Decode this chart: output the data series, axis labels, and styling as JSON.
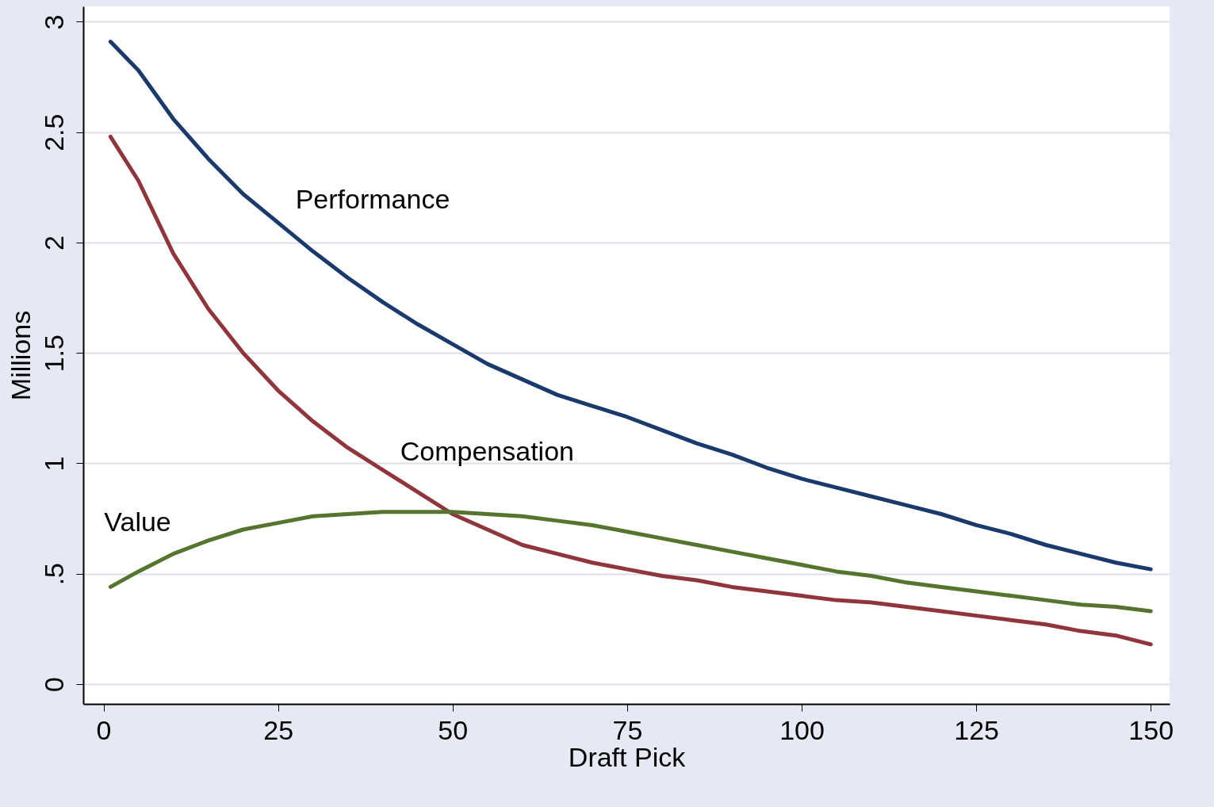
{
  "chart_data": {
    "type": "line",
    "xlabel": "Draft Pick",
    "ylabel": "Millions",
    "xlim": [
      -2.9,
      152.7
    ],
    "ylim": [
      -0.09,
      3.07
    ],
    "xticks": [
      0,
      25,
      50,
      75,
      100,
      125,
      150
    ],
    "yticks": [
      0,
      {
        "value": 0.5,
        "label": ".5"
      },
      1,
      1.5,
      2,
      2.5,
      3
    ],
    "grid": "y",
    "legend": false,
    "marker": "none",
    "line_style": "solid",
    "x": [
      1,
      5,
      10,
      15,
      20,
      25,
      30,
      35,
      40,
      45,
      50,
      55,
      60,
      65,
      70,
      75,
      80,
      85,
      90,
      95,
      100,
      105,
      110,
      115,
      120,
      125,
      130,
      135,
      140,
      145,
      150
    ],
    "series": [
      {
        "name": "Performance",
        "color": "#1a3a6e",
        "values": [
          2.91,
          2.78,
          2.56,
          2.38,
          2.22,
          2.09,
          1.96,
          1.84,
          1.73,
          1.63,
          1.54,
          1.45,
          1.38,
          1.31,
          1.26,
          1.21,
          1.15,
          1.09,
          1.04,
          0.98,
          0.93,
          0.89,
          0.85,
          0.81,
          0.77,
          0.72,
          0.68,
          0.63,
          0.59,
          0.55,
          0.52
        ]
      },
      {
        "name": "Compensation",
        "color": "#90353b",
        "values": [
          2.48,
          2.28,
          1.95,
          1.7,
          1.5,
          1.33,
          1.19,
          1.07,
          0.97,
          0.87,
          0.77,
          0.7,
          0.63,
          0.59,
          0.55,
          0.52,
          0.49,
          0.47,
          0.44,
          0.42,
          0.4,
          0.38,
          0.37,
          0.35,
          0.33,
          0.31,
          0.29,
          0.27,
          0.24,
          0.22,
          0.18
        ]
      },
      {
        "name": "Value",
        "color": "#55752f",
        "values": [
          0.44,
          0.51,
          0.59,
          0.65,
          0.7,
          0.73,
          0.76,
          0.77,
          0.78,
          0.78,
          0.78,
          0.77,
          0.76,
          0.74,
          0.72,
          0.69,
          0.66,
          0.63,
          0.6,
          0.57,
          0.54,
          0.51,
          0.49,
          0.46,
          0.44,
          0.42,
          0.4,
          0.38,
          0.36,
          0.35,
          0.33
        ]
      }
    ]
  }
}
